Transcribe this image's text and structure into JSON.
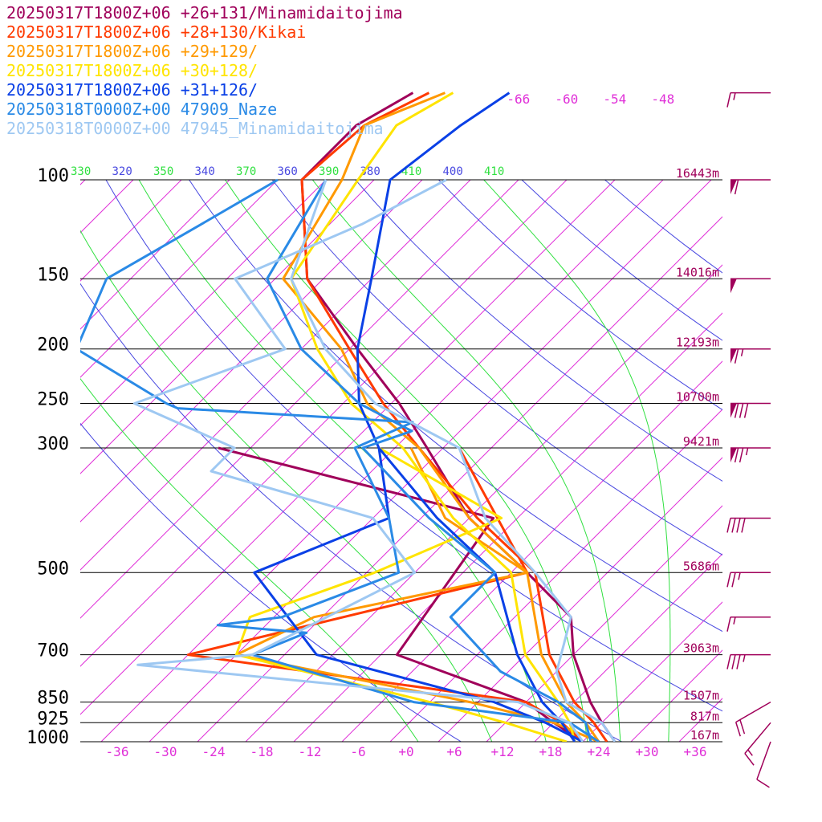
{
  "legend": [
    {
      "label": "20250317T1800Z+06 +26+131/Minamidaitojima",
      "color": "#a0005a"
    },
    {
      "label": "20250317T1800Z+06 +28+130/Kikai",
      "color": "#ff3a00"
    },
    {
      "label": "20250317T1800Z+06 +29+129/",
      "color": "#ff9900"
    },
    {
      "label": "20250317T1800Z+06 +30+128/",
      "color": "#ffe400"
    },
    {
      "label": "20250317T1800Z+06 +31+126/",
      "color": "#0a40e6"
    },
    {
      "label": "20250318T0000Z+00 47909_Naze",
      "color": "#2a8ae6"
    },
    {
      "label": "20250318T0000Z+00 47945_Minamidaitojima",
      "color": "#9ec8f2"
    }
  ],
  "colors": {
    "isotherm": "#e030d8",
    "dry_adiabat": "#4848e0",
    "moist_adiabat": "#30e040",
    "height": "#a0005a",
    "axis_text": "#000000",
    "barb": "#a0005a"
  },
  "chart_data": {
    "type": "line",
    "chart_kind": "skew-T log-p",
    "x_axis": {
      "ticks": [
        "-36",
        "-30",
        "-24",
        "-18",
        "-12",
        "-6",
        "+0",
        "+6",
        "+12",
        "+18",
        "+24",
        "+30",
        "+36"
      ],
      "range": [
        -40,
        40
      ]
    },
    "y_axis": {
      "scale": "log",
      "range": [
        1000,
        100
      ]
    },
    "pressure_levels": [
      {
        "p": 100,
        "label": "100",
        "height": "16443m"
      },
      {
        "p": 150,
        "label": "150",
        "height": "14016m"
      },
      {
        "p": 200,
        "label": "200",
        "height": "12193m"
      },
      {
        "p": 250,
        "label": "250",
        "height": "10700m"
      },
      {
        "p": 300,
        "label": "300",
        "height": "9421m"
      },
      {
        "p": 500,
        "label": "500",
        "height": "5686m"
      },
      {
        "p": 700,
        "label": "700",
        "height": "3063m"
      },
      {
        "p": 850,
        "label": "850",
        "height": "1507m"
      },
      {
        "p": 925,
        "label": "925",
        "height": "817m"
      },
      {
        "p": 1000,
        "label": "1000",
        "height": "167m"
      }
    ],
    "dry_adiabat_labels": [
      "320",
      "340",
      "360",
      "380",
      "400"
    ],
    "moist_adiabat_labels": [
      "330",
      "350",
      "370",
      "390",
      "410"
    ],
    "upper_isotherm_labels": [
      "-66",
      "-60",
      "-54",
      "-48"
    ],
    "grid": true,
    "legend_placement": "top-left",
    "series": [
      {
        "name": "20250317T1800Z+06 +26+131/Minamidaitojima",
        "color": "#a0005a",
        "temperature": [
          [
            1000,
            26
          ],
          [
            925,
            22
          ],
          [
            850,
            18
          ],
          [
            700,
            10
          ],
          [
            600,
            5
          ],
          [
            500,
            -6
          ],
          [
            400,
            -20
          ],
          [
            300,
            -34
          ],
          [
            250,
            -43
          ],
          [
            200,
            -55
          ],
          [
            150,
            -70
          ],
          [
            100,
            -83
          ],
          [
            80,
            -83
          ],
          [
            70,
            -80
          ]
        ],
        "dewpoint": [
          [
            1000,
            22
          ],
          [
            925,
            16
          ],
          [
            850,
            10
          ],
          [
            700,
            -12
          ],
          [
            400,
            -17
          ],
          [
            300,
            -60
          ]
        ]
      },
      {
        "name": "20250317T1800Z+06 +28+130/Kikai",
        "color": "#ff3a00",
        "temperature": [
          [
            1000,
            25
          ],
          [
            925,
            21
          ],
          [
            850,
            16
          ],
          [
            700,
            7
          ],
          [
            500,
            -5
          ],
          [
            400,
            -19
          ],
          [
            300,
            -35
          ],
          [
            250,
            -45
          ],
          [
            200,
            -56
          ],
          [
            150,
            -70
          ],
          [
            100,
            -83
          ],
          [
            80,
            -82
          ],
          [
            70,
            -78
          ]
        ],
        "dewpoint": [
          [
            1000,
            22
          ],
          [
            925,
            17
          ],
          [
            850,
            10
          ],
          [
            700,
            -38
          ],
          [
            500,
            -6
          ],
          [
            300,
            -30
          ]
        ]
      },
      {
        "name": "20250317T1800Z+06 +29+129/",
        "color": "#ff9900",
        "temperature": [
          [
            1000,
            24
          ],
          [
            925,
            20
          ],
          [
            850,
            15
          ],
          [
            700,
            6
          ],
          [
            500,
            -6
          ],
          [
            400,
            -20
          ],
          [
            300,
            -35
          ],
          [
            250,
            -47
          ],
          [
            200,
            -57
          ],
          [
            150,
            -73
          ],
          [
            100,
            -78
          ],
          [
            80,
            -82
          ],
          [
            70,
            -76
          ]
        ],
        "dewpoint": [
          [
            1000,
            24
          ],
          [
            925,
            16
          ],
          [
            850,
            3
          ],
          [
            700,
            -32
          ],
          [
            600,
            -27
          ],
          [
            500,
            -6
          ],
          [
            400,
            -23
          ],
          [
            300,
            -36
          ]
        ]
      },
      {
        "name": "20250317T1800Z+06 +30+128/",
        "color": "#ffe400",
        "temperature": [
          [
            1000,
            21
          ],
          [
            925,
            18
          ],
          [
            850,
            14
          ],
          [
            700,
            4
          ],
          [
            500,
            -8
          ],
          [
            400,
            -22
          ],
          [
            300,
            -37
          ],
          [
            250,
            -49
          ],
          [
            200,
            -60
          ],
          [
            150,
            -72
          ],
          [
            100,
            -76
          ],
          [
            80,
            -78
          ],
          [
            70,
            -75
          ]
        ],
        "dewpoint": [
          [
            1000,
            20
          ],
          [
            925,
            10
          ],
          [
            850,
            -2
          ],
          [
            700,
            -32
          ],
          [
            600,
            -35
          ],
          [
            500,
            -25
          ],
          [
            400,
            -16
          ],
          [
            300,
            -40
          ]
        ]
      },
      {
        "name": "20250317T1800Z+06 +31+126/",
        "color": "#0a40e6",
        "temperature": [
          [
            1000,
            21
          ],
          [
            925,
            17
          ],
          [
            850,
            12
          ],
          [
            700,
            3
          ],
          [
            500,
            -10
          ],
          [
            400,
            -24
          ],
          [
            300,
            -40
          ],
          [
            250,
            -48
          ],
          [
            200,
            -55
          ],
          [
            150,
            -62
          ],
          [
            100,
            -72
          ],
          [
            80,
            -70
          ],
          [
            70,
            -68
          ]
        ],
        "dewpoint": [
          [
            1000,
            22
          ],
          [
            925,
            15
          ],
          [
            850,
            6
          ],
          [
            700,
            -22
          ],
          [
            500,
            -40
          ],
          [
            400,
            -30
          ],
          [
            300,
            -40
          ]
        ]
      },
      {
        "name": "20250318T0000Z+00 47909_Naze",
        "color": "#2a8ae6",
        "temperature": [
          [
            1000,
            23
          ],
          [
            925,
            20
          ],
          [
            850,
            14
          ],
          [
            750,
            3
          ],
          [
            600,
            -10
          ],
          [
            500,
            -10
          ],
          [
            400,
            -25
          ],
          [
            300,
            -42
          ],
          [
            280,
            -38
          ],
          [
            250,
            -48
          ],
          [
            200,
            -62
          ],
          [
            150,
            -75
          ],
          [
            100,
            -80
          ]
        ],
        "dewpoint": [
          [
            1000,
            24
          ],
          [
            925,
            18
          ],
          [
            850,
            -4
          ],
          [
            700,
            -30
          ],
          [
            640,
            -26
          ],
          [
            620,
            -38
          ],
          [
            600,
            -31
          ],
          [
            500,
            -22
          ],
          [
            400,
            -30
          ],
          [
            300,
            -43
          ],
          [
            270,
            -39
          ],
          [
            255,
            -70
          ],
          [
            250,
            -72
          ],
          [
            200,
            -90
          ],
          [
            150,
            -95
          ],
          [
            120,
            -90
          ],
          [
            100,
            -86
          ]
        ]
      },
      {
        "name": "20250318T0000Z+00 47945_Minamidaitojima",
        "color": "#9ec8f2",
        "temperature": [
          [
            1000,
            26
          ],
          [
            925,
            22
          ],
          [
            850,
            15
          ],
          [
            750,
            10
          ],
          [
            600,
            5
          ],
          [
            500,
            -5
          ],
          [
            400,
            -18
          ],
          [
            300,
            -30
          ],
          [
            250,
            -46
          ],
          [
            200,
            -59
          ],
          [
            150,
            -72
          ],
          [
            100,
            -80
          ]
        ],
        "dewpoint": [
          [
            1000,
            22
          ],
          [
            925,
            18
          ],
          [
            850,
            9
          ],
          [
            730,
            -43
          ],
          [
            700,
            -30
          ],
          [
            500,
            -20
          ],
          [
            400,
            -32
          ],
          [
            330,
            -58
          ],
          [
            300,
            -58
          ],
          [
            250,
            -76
          ],
          [
            200,
            -64
          ],
          [
            150,
            -79
          ],
          [
            120,
            -70
          ],
          [
            100,
            -65
          ]
        ]
      }
    ],
    "wind_barbs_kt": [
      {
        "p": 70,
        "speed": 15,
        "dir": 270
      },
      {
        "p": 100,
        "speed": 60,
        "dir": 270
      },
      {
        "p": 150,
        "speed": 50,
        "dir": 270
      },
      {
        "p": 200,
        "speed": 65,
        "dir": 270
      },
      {
        "p": 250,
        "speed": 80,
        "dir": 270
      },
      {
        "p": 300,
        "speed": 75,
        "dir": 270
      },
      {
        "p": 400,
        "speed": 40,
        "dir": 270
      },
      {
        "p": 500,
        "speed": 25,
        "dir": 270
      },
      {
        "p": 600,
        "speed": 15,
        "dir": 270
      },
      {
        "p": 700,
        "speed": 35,
        "dir": 270
      },
      {
        "p": 850,
        "speed": 20,
        "dir": 240
      },
      {
        "p": 925,
        "speed": 15,
        "dir": 220
      },
      {
        "p": 1000,
        "speed": 10,
        "dir": 200
      }
    ]
  }
}
